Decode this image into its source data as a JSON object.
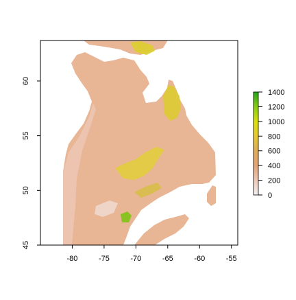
{
  "map": {
    "x_ticks": [
      "-80",
      "-75",
      "-70",
      "-65",
      "-60",
      "-55"
    ],
    "y_ticks": [
      "45",
      "50",
      "55",
      "60"
    ],
    "x_range": [
      -85,
      -54
    ],
    "y_range": [
      45,
      63.7
    ],
    "legend_title": "",
    "legend_ticks": [
      "0",
      "200",
      "400",
      "600",
      "800",
      "1000",
      "1200",
      "1400"
    ],
    "legend_range": [
      0,
      1400
    ],
    "color_scale": [
      "#f2f2f2",
      "#eec9b8",
      "#e4a374",
      "#e1ad56",
      "#e6c931",
      "#dbe00a",
      "#86cc10",
      "#20a51a"
    ]
  }
}
